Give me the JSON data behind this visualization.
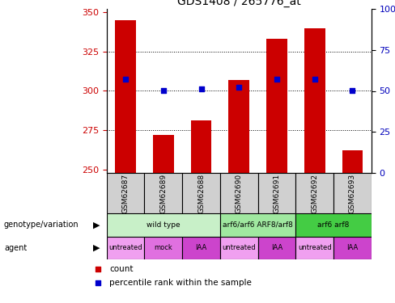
{
  "title": "GDS1408 / 265776_at",
  "samples": [
    "GSM62687",
    "GSM62689",
    "GSM62688",
    "GSM62690",
    "GSM62691",
    "GSM62692",
    "GSM62693"
  ],
  "count_values": [
    345,
    272,
    281,
    307,
    333,
    340,
    262
  ],
  "percentile_values": [
    57,
    50,
    51,
    52,
    57,
    57,
    50
  ],
  "ylim_left": [
    248,
    352
  ],
  "ylim_right": [
    0,
    100
  ],
  "yticks_left": [
    250,
    275,
    300,
    325,
    350
  ],
  "yticks_right": [
    0,
    25,
    50,
    75,
    100
  ],
  "bar_color": "#cc0000",
  "dot_color": "#0000cc",
  "bar_width": 0.55,
  "genotype_groups": [
    {
      "label": "wild type",
      "start": 0,
      "end": 3,
      "color": "#c8f0c8"
    },
    {
      "label": "arf6/arf6 ARF8/arf8",
      "start": 3,
      "end": 5,
      "color": "#a0e8a0"
    },
    {
      "label": "arf6 arf8",
      "start": 5,
      "end": 7,
      "color": "#44cc44"
    }
  ],
  "agent_groups": [
    {
      "label": "untreated",
      "start": 0,
      "end": 1,
      "color": "#f0a0f0"
    },
    {
      "label": "mock",
      "start": 1,
      "end": 2,
      "color": "#e070e0"
    },
    {
      "label": "IAA",
      "start": 2,
      "end": 3,
      "color": "#cc44cc"
    },
    {
      "label": "untreated",
      "start": 3,
      "end": 4,
      "color": "#f0a0f0"
    },
    {
      "label": "IAA",
      "start": 4,
      "end": 5,
      "color": "#cc44cc"
    },
    {
      "label": "untreated",
      "start": 5,
      "end": 6,
      "color": "#f0a0f0"
    },
    {
      "label": "IAA",
      "start": 6,
      "end": 7,
      "color": "#cc44cc"
    }
  ],
  "grid_yticks": [
    275,
    300,
    325
  ],
  "sample_box_color": "#d0d0d0",
  "ax_label_color_left": "#cc0000",
  "ax_label_color_right": "#0000bb",
  "legend_count_color": "#cc0000",
  "legend_pct_color": "#0000cc"
}
